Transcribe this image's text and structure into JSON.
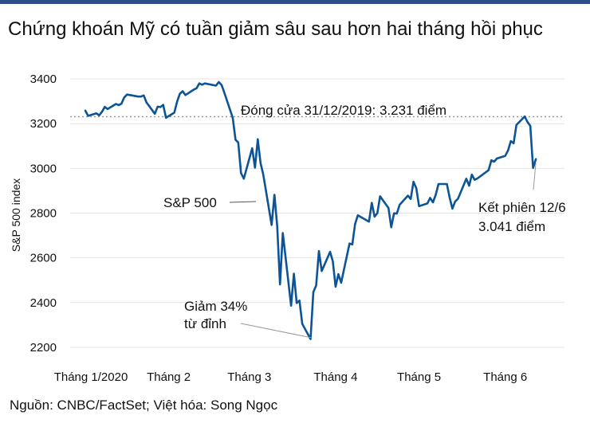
{
  "title": "Chứng khoán Mỹ có tuần giảm sâu sau hơn hai tháng hồi phục",
  "source": "Nguồn: CNBC/FactSet; Việt hóa: Song Ngọc",
  "chart_data": {
    "type": "line",
    "title": "Chứng khoán Mỹ có tuần giảm sâu sau hơn hai tháng hồi phục",
    "xlabel": "",
    "ylabel": "S&P 500 index",
    "ylim": [
      2150,
      3450
    ],
    "yticks": [
      2200,
      2400,
      2600,
      2800,
      3000,
      3200,
      3400
    ],
    "xlim": [
      "2020-01-02",
      "2020-06-18"
    ],
    "xticks": [
      {
        "date": "2020-01-02",
        "label": "Tháng 1/2020"
      },
      {
        "date": "2020-02-01",
        "label": "Tháng 2"
      },
      {
        "date": "2020-03-01",
        "label": "Tháng 3"
      },
      {
        "date": "2020-04-01",
        "label": "Tháng 4"
      },
      {
        "date": "2020-05-01",
        "label": "Tháng 5"
      },
      {
        "date": "2020-06-01",
        "label": "Tháng 6"
      }
    ],
    "grid": "horizontal",
    "line_color": "#0d5496",
    "reference_line": {
      "value": 3231,
      "label": "Đóng cửa 31/12/2019: 3.231 điểm",
      "color": "#999999"
    },
    "annotations": [
      {
        "label": "S&P 500"
      },
      {
        "label": "Giảm 34%\ntừ đỉnh"
      },
      {
        "label": "Kết phiên 12/6\n3.041 điểm"
      }
    ],
    "series": [
      {
        "name": "S&P 500",
        "points": [
          [
            "2020-01-02",
            3258
          ],
          [
            "2020-01-03",
            3235
          ],
          [
            "2020-01-06",
            3246
          ],
          [
            "2020-01-07",
            3237
          ],
          [
            "2020-01-08",
            3253
          ],
          [
            "2020-01-09",
            3275
          ],
          [
            "2020-01-10",
            3265
          ],
          [
            "2020-01-13",
            3288
          ],
          [
            "2020-01-14",
            3283
          ],
          [
            "2020-01-15",
            3289
          ],
          [
            "2020-01-16",
            3317
          ],
          [
            "2020-01-17",
            3330
          ],
          [
            "2020-01-21",
            3321
          ],
          [
            "2020-01-22",
            3321
          ],
          [
            "2020-01-23",
            3326
          ],
          [
            "2020-01-24",
            3295
          ],
          [
            "2020-01-27",
            3244
          ],
          [
            "2020-01-28",
            3276
          ],
          [
            "2020-01-29",
            3274
          ],
          [
            "2020-01-30",
            3284
          ],
          [
            "2020-01-31",
            3226
          ],
          [
            "2020-02-03",
            3249
          ],
          [
            "2020-02-04",
            3298
          ],
          [
            "2020-02-05",
            3334
          ],
          [
            "2020-02-06",
            3345
          ],
          [
            "2020-02-07",
            3328
          ],
          [
            "2020-02-10",
            3352
          ],
          [
            "2020-02-11",
            3358
          ],
          [
            "2020-02-12",
            3380
          ],
          [
            "2020-02-13",
            3374
          ],
          [
            "2020-02-14",
            3380
          ],
          [
            "2020-02-18",
            3370
          ],
          [
            "2020-02-19",
            3386
          ],
          [
            "2020-02-20",
            3373
          ],
          [
            "2020-02-21",
            3338
          ],
          [
            "2020-02-24",
            3226
          ],
          [
            "2020-02-25",
            3128
          ],
          [
            "2020-02-26",
            3116
          ],
          [
            "2020-02-27",
            2979
          ],
          [
            "2020-02-28",
            2954
          ],
          [
            "2020-03-02",
            3090
          ],
          [
            "2020-03-03",
            3003
          ],
          [
            "2020-03-04",
            3130
          ],
          [
            "2020-03-05",
            3024
          ],
          [
            "2020-03-06",
            2972
          ],
          [
            "2020-03-09",
            2747
          ],
          [
            "2020-03-10",
            2882
          ],
          [
            "2020-03-11",
            2741
          ],
          [
            "2020-03-12",
            2481
          ],
          [
            "2020-03-13",
            2711
          ],
          [
            "2020-03-16",
            2386
          ],
          [
            "2020-03-17",
            2529
          ],
          [
            "2020-03-18",
            2398
          ],
          [
            "2020-03-19",
            2409
          ],
          [
            "2020-03-20",
            2305
          ],
          [
            "2020-03-23",
            2237
          ],
          [
            "2020-03-24",
            2447
          ],
          [
            "2020-03-25",
            2476
          ],
          [
            "2020-03-26",
            2630
          ],
          [
            "2020-03-27",
            2541
          ],
          [
            "2020-03-30",
            2627
          ],
          [
            "2020-03-31",
            2585
          ],
          [
            "2020-04-01",
            2471
          ],
          [
            "2020-04-02",
            2527
          ],
          [
            "2020-04-03",
            2489
          ],
          [
            "2020-04-06",
            2664
          ],
          [
            "2020-04-07",
            2660
          ],
          [
            "2020-04-08",
            2750
          ],
          [
            "2020-04-09",
            2790
          ],
          [
            "2020-04-13",
            2762
          ],
          [
            "2020-04-14",
            2846
          ],
          [
            "2020-04-15",
            2784
          ],
          [
            "2020-04-16",
            2800
          ],
          [
            "2020-04-17",
            2875
          ],
          [
            "2020-04-20",
            2823
          ],
          [
            "2020-04-21",
            2737
          ],
          [
            "2020-04-22",
            2799
          ],
          [
            "2020-04-23",
            2798
          ],
          [
            "2020-04-24",
            2837
          ],
          [
            "2020-04-27",
            2878
          ],
          [
            "2020-04-28",
            2863
          ],
          [
            "2020-04-29",
            2940
          ],
          [
            "2020-04-30",
            2912
          ],
          [
            "2020-05-01",
            2831
          ],
          [
            "2020-05-04",
            2843
          ],
          [
            "2020-05-05",
            2868
          ],
          [
            "2020-05-06",
            2848
          ],
          [
            "2020-05-07",
            2882
          ],
          [
            "2020-05-08",
            2930
          ],
          [
            "2020-05-11",
            2930
          ],
          [
            "2020-05-12",
            2870
          ],
          [
            "2020-05-13",
            2820
          ],
          [
            "2020-05-14",
            2852
          ],
          [
            "2020-05-15",
            2864
          ],
          [
            "2020-05-18",
            2954
          ],
          [
            "2020-05-19",
            2922
          ],
          [
            "2020-05-20",
            2972
          ],
          [
            "2020-05-21",
            2949
          ],
          [
            "2020-05-22",
            2955
          ],
          [
            "2020-05-26",
            2992
          ],
          [
            "2020-05-27",
            3036
          ],
          [
            "2020-05-28",
            3030
          ],
          [
            "2020-05-29",
            3044
          ],
          [
            "2020-06-01",
            3056
          ],
          [
            "2020-06-02",
            3080
          ],
          [
            "2020-06-03",
            3122
          ],
          [
            "2020-06-04",
            3112
          ],
          [
            "2020-06-05",
            3194
          ],
          [
            "2020-06-08",
            3232
          ],
          [
            "2020-06-09",
            3207
          ],
          [
            "2020-06-10",
            3190
          ],
          [
            "2020-06-11",
            3002
          ],
          [
            "2020-06-12",
            3041
          ]
        ]
      }
    ]
  }
}
